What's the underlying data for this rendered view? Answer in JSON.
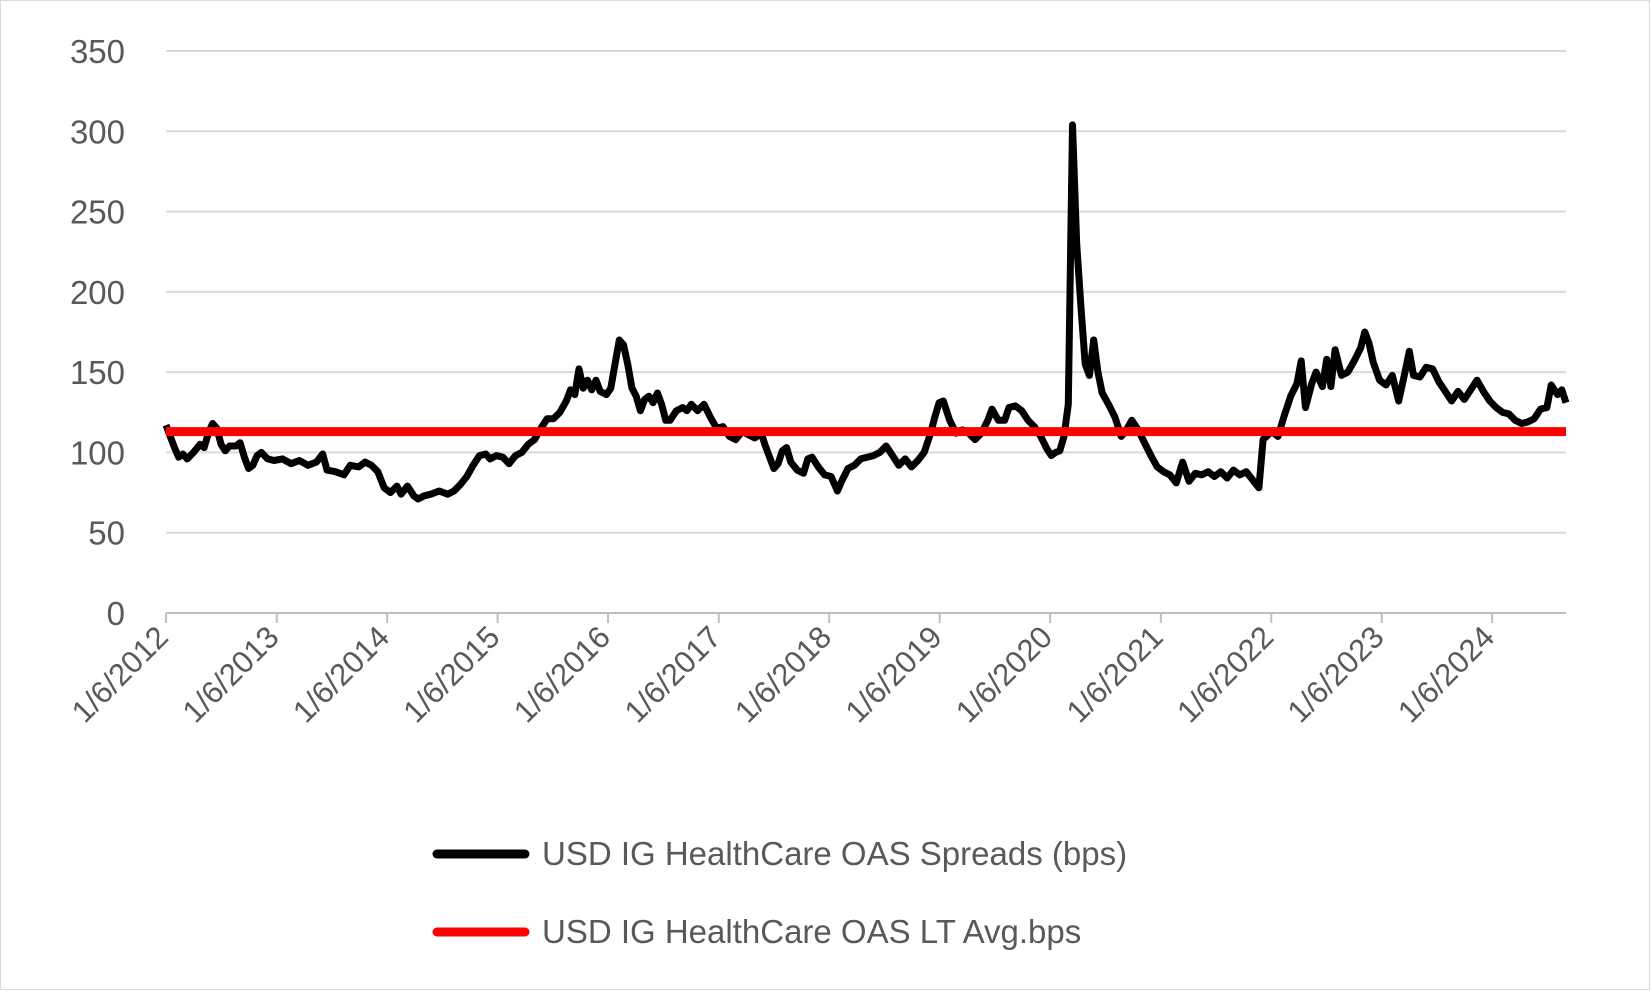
{
  "chart_data": {
    "type": "line",
    "title": "",
    "xlabel": "",
    "ylabel": "",
    "x_range": [
      "1/6/2012",
      "2024-09-06"
    ],
    "ylim": [
      0,
      350
    ],
    "y_ticks": [
      0,
      50,
      100,
      150,
      200,
      250,
      300,
      350
    ],
    "x_tick_labels": [
      "1/6/2012",
      "1/6/2013",
      "1/6/2014",
      "1/6/2015",
      "1/6/2016",
      "1/6/2017",
      "1/6/2018",
      "1/6/2019",
      "1/6/2020",
      "1/6/2021",
      "1/6/2022",
      "1/6/2023",
      "1/6/2024"
    ],
    "grid": "horizontal",
    "legend_position": "bottom",
    "colors": {
      "spread": "#000000",
      "average": "#ff0000",
      "grid": "#d9d9d9",
      "axis": "#bfbfbf",
      "text": "#595959"
    },
    "series": [
      {
        "name": "USD IG HealthCare OAS  Spreads (bps)",
        "color": "#000000",
        "points": [
          [
            "2012-01-06",
            117
          ],
          [
            "2012-01-20",
            110
          ],
          [
            "2012-02-03",
            103
          ],
          [
            "2012-02-17",
            97
          ],
          [
            "2012-03-02",
            99
          ],
          [
            "2012-03-16",
            96
          ],
          [
            "2012-04-06",
            100
          ],
          [
            "2012-04-27",
            105
          ],
          [
            "2012-05-11",
            103
          ],
          [
            "2012-05-25",
            112
          ],
          [
            "2012-06-08",
            118
          ],
          [
            "2012-06-22",
            115
          ],
          [
            "2012-07-06",
            105
          ],
          [
            "2012-07-20",
            101
          ],
          [
            "2012-08-03",
            104
          ],
          [
            "2012-08-24",
            104
          ],
          [
            "2012-09-07",
            106
          ],
          [
            "2012-09-21",
            97
          ],
          [
            "2012-10-05",
            90
          ],
          [
            "2012-10-19",
            92
          ],
          [
            "2012-11-02",
            98
          ],
          [
            "2012-11-16",
            100
          ],
          [
            "2012-12-07",
            96
          ],
          [
            "2012-12-28",
            95
          ],
          [
            "2013-01-25",
            96
          ],
          [
            "2013-02-22",
            93
          ],
          [
            "2013-03-22",
            95
          ],
          [
            "2013-04-19",
            92
          ],
          [
            "2013-05-17",
            94
          ],
          [
            "2013-06-07",
            99
          ],
          [
            "2013-06-21",
            89
          ],
          [
            "2013-07-19",
            88
          ],
          [
            "2013-08-16",
            86
          ],
          [
            "2013-09-06",
            92
          ],
          [
            "2013-10-04",
            91
          ],
          [
            "2013-10-25",
            94
          ],
          [
            "2013-11-15",
            92
          ],
          [
            "2013-12-06",
            88
          ],
          [
            "2013-12-27",
            78
          ],
          [
            "2014-01-17",
            75
          ],
          [
            "2014-02-07",
            79
          ],
          [
            "2014-02-21",
            74
          ],
          [
            "2014-03-14",
            79
          ],
          [
            "2014-04-04",
            73
          ],
          [
            "2014-04-18",
            71
          ],
          [
            "2014-05-09",
            73
          ],
          [
            "2014-05-30",
            74
          ],
          [
            "2014-06-27",
            76
          ],
          [
            "2014-07-25",
            74
          ],
          [
            "2014-08-15",
            76
          ],
          [
            "2014-09-05",
            80
          ],
          [
            "2014-09-26",
            85
          ],
          [
            "2014-10-17",
            92
          ],
          [
            "2014-11-07",
            98
          ],
          [
            "2014-11-28",
            99
          ],
          [
            "2014-12-12",
            96
          ],
          [
            "2015-01-02",
            98
          ],
          [
            "2015-01-23",
            97
          ],
          [
            "2015-02-13",
            93
          ],
          [
            "2015-03-06",
            98
          ],
          [
            "2015-03-27",
            100
          ],
          [
            "2015-04-17",
            105
          ],
          [
            "2015-05-08",
            108
          ],
          [
            "2015-05-29",
            115
          ],
          [
            "2015-06-19",
            121
          ],
          [
            "2015-07-10",
            121
          ],
          [
            "2015-07-31",
            125
          ],
          [
            "2015-08-21",
            132
          ],
          [
            "2015-09-04",
            139
          ],
          [
            "2015-09-18",
            136
          ],
          [
            "2015-10-02",
            152
          ],
          [
            "2015-10-16",
            140
          ],
          [
            "2015-10-30",
            145
          ],
          [
            "2015-11-13",
            139
          ],
          [
            "2015-11-27",
            145
          ],
          [
            "2015-12-11",
            138
          ],
          [
            "2016-01-01",
            136
          ],
          [
            "2016-01-15",
            140
          ],
          [
            "2016-01-29",
            155
          ],
          [
            "2016-02-12",
            170
          ],
          [
            "2016-02-26",
            167
          ],
          [
            "2016-03-11",
            155
          ],
          [
            "2016-03-25",
            140
          ],
          [
            "2016-04-08",
            135
          ],
          [
            "2016-04-22",
            126
          ],
          [
            "2016-05-06",
            133
          ],
          [
            "2016-05-20",
            135
          ],
          [
            "2016-06-03",
            131
          ],
          [
            "2016-06-17",
            137
          ],
          [
            "2016-07-01",
            130
          ],
          [
            "2016-07-15",
            120
          ],
          [
            "2016-07-29",
            120
          ],
          [
            "2016-08-19",
            126
          ],
          [
            "2016-09-09",
            128
          ],
          [
            "2016-09-23",
            126
          ],
          [
            "2016-10-07",
            130
          ],
          [
            "2016-10-28",
            126
          ],
          [
            "2016-11-18",
            130
          ],
          [
            "2016-12-09",
            122
          ],
          [
            "2016-12-30",
            115
          ],
          [
            "2017-01-20",
            116
          ],
          [
            "2017-02-10",
            110
          ],
          [
            "2017-03-03",
            108
          ],
          [
            "2017-03-24",
            113
          ],
          [
            "2017-04-14",
            111
          ],
          [
            "2017-05-05",
            109
          ],
          [
            "2017-05-26",
            112
          ],
          [
            "2017-06-09",
            104
          ],
          [
            "2017-06-23",
            97
          ],
          [
            "2017-07-07",
            90
          ],
          [
            "2017-07-21",
            93
          ],
          [
            "2017-08-04",
            101
          ],
          [
            "2017-08-18",
            103
          ],
          [
            "2017-09-01",
            94
          ],
          [
            "2017-09-22",
            89
          ],
          [
            "2017-10-13",
            87
          ],
          [
            "2017-10-27",
            96
          ],
          [
            "2017-11-10",
            97
          ],
          [
            "2017-12-01",
            91
          ],
          [
            "2017-12-22",
            86
          ],
          [
            "2018-01-12",
            85
          ],
          [
            "2018-02-02",
            76
          ],
          [
            "2018-02-16",
            82
          ],
          [
            "2018-03-09",
            90
          ],
          [
            "2018-03-30",
            92
          ],
          [
            "2018-04-20",
            96
          ],
          [
            "2018-05-11",
            97
          ],
          [
            "2018-06-01",
            98
          ],
          [
            "2018-06-22",
            100
          ],
          [
            "2018-07-13",
            104
          ],
          [
            "2018-08-03",
            98
          ],
          [
            "2018-08-24",
            92
          ],
          [
            "2018-09-14",
            96
          ],
          [
            "2018-10-05",
            91
          ],
          [
            "2018-10-26",
            95
          ],
          [
            "2018-11-16",
            100
          ],
          [
            "2018-12-07",
            112
          ],
          [
            "2018-12-21",
            122
          ],
          [
            "2019-01-04",
            131
          ],
          [
            "2019-01-18",
            132
          ],
          [
            "2019-02-08",
            120
          ],
          [
            "2019-03-01",
            112
          ],
          [
            "2019-03-22",
            114
          ],
          [
            "2019-04-12",
            112
          ],
          [
            "2019-05-03",
            108
          ],
          [
            "2019-05-24",
            112
          ],
          [
            "2019-06-14",
            120
          ],
          [
            "2019-06-28",
            127
          ],
          [
            "2019-07-19",
            120
          ],
          [
            "2019-08-09",
            120
          ],
          [
            "2019-08-23",
            128
          ],
          [
            "2019-09-13",
            129
          ],
          [
            "2019-10-04",
            126
          ],
          [
            "2019-10-25",
            120
          ],
          [
            "2019-11-15",
            116
          ],
          [
            "2019-12-06",
            110
          ],
          [
            "2019-12-27",
            102
          ],
          [
            "2020-01-10",
            98
          ],
          [
            "2020-01-24",
            100
          ],
          [
            "2020-02-07",
            101
          ],
          [
            "2020-02-21",
            110
          ],
          [
            "2020-03-06",
            130
          ],
          [
            "2020-03-20",
            304
          ],
          [
            "2020-04-03",
            230
          ],
          [
            "2020-04-17",
            190
          ],
          [
            "2020-05-01",
            155
          ],
          [
            "2020-05-15",
            148
          ],
          [
            "2020-05-29",
            170
          ],
          [
            "2020-06-12",
            150
          ],
          [
            "2020-06-26",
            137
          ],
          [
            "2020-07-17",
            130
          ],
          [
            "2020-08-07",
            122
          ],
          [
            "2020-08-28",
            110
          ],
          [
            "2020-09-11",
            113
          ],
          [
            "2020-10-02",
            120
          ],
          [
            "2020-10-23",
            114
          ],
          [
            "2020-11-13",
            106
          ],
          [
            "2020-12-04",
            98
          ],
          [
            "2020-12-25",
            91
          ],
          [
            "2021-01-15",
            88
          ],
          [
            "2021-02-05",
            86
          ],
          [
            "2021-02-26",
            81
          ],
          [
            "2021-03-19",
            94
          ],
          [
            "2021-04-09",
            82
          ],
          [
            "2021-04-30",
            87
          ],
          [
            "2021-05-21",
            86
          ],
          [
            "2021-06-11",
            88
          ],
          [
            "2021-07-02",
            85
          ],
          [
            "2021-07-23",
            88
          ],
          [
            "2021-08-13",
            84
          ],
          [
            "2021-09-03",
            89
          ],
          [
            "2021-09-24",
            86
          ],
          [
            "2021-10-15",
            88
          ],
          [
            "2021-11-05",
            83
          ],
          [
            "2021-11-26",
            78
          ],
          [
            "2021-12-10",
            108
          ],
          [
            "2022-01-07",
            113
          ],
          [
            "2022-01-28",
            110
          ],
          [
            "2022-02-18",
            123
          ],
          [
            "2022-03-11",
            135
          ],
          [
            "2022-04-01",
            143
          ],
          [
            "2022-04-15",
            157
          ],
          [
            "2022-04-29",
            128
          ],
          [
            "2022-05-20",
            143
          ],
          [
            "2022-06-03",
            150
          ],
          [
            "2022-06-24",
            141
          ],
          [
            "2022-07-08",
            158
          ],
          [
            "2022-07-22",
            141
          ],
          [
            "2022-08-05",
            164
          ],
          [
            "2022-08-26",
            148
          ],
          [
            "2022-09-16",
            150
          ],
          [
            "2022-10-07",
            157
          ],
          [
            "2022-10-28",
            165
          ],
          [
            "2022-11-11",
            175
          ],
          [
            "2022-11-25",
            168
          ],
          [
            "2022-12-09",
            156
          ],
          [
            "2022-12-30",
            145
          ],
          [
            "2023-01-20",
            142
          ],
          [
            "2023-02-10",
            148
          ],
          [
            "2023-03-03",
            132
          ],
          [
            "2023-03-24",
            150
          ],
          [
            "2023-04-07",
            163
          ],
          [
            "2023-04-21",
            148
          ],
          [
            "2023-05-12",
            147
          ],
          [
            "2023-06-02",
            153
          ],
          [
            "2023-06-23",
            152
          ],
          [
            "2023-07-14",
            144
          ],
          [
            "2023-08-04",
            138
          ],
          [
            "2023-08-25",
            132
          ],
          [
            "2023-09-15",
            138
          ],
          [
            "2023-10-06",
            133
          ],
          [
            "2023-10-27",
            139
          ],
          [
            "2023-11-17",
            145
          ],
          [
            "2023-12-08",
            138
          ],
          [
            "2023-12-29",
            132
          ],
          [
            "2024-01-19",
            128
          ],
          [
            "2024-02-09",
            125
          ],
          [
            "2024-03-01",
            124
          ],
          [
            "2024-03-22",
            120
          ],
          [
            "2024-04-12",
            118
          ],
          [
            "2024-05-03",
            119
          ],
          [
            "2024-05-24",
            121
          ],
          [
            "2024-06-14",
            127
          ],
          [
            "2024-07-05",
            128
          ],
          [
            "2024-07-19",
            142
          ],
          [
            "2024-08-09",
            136
          ],
          [
            "2024-08-23",
            139
          ],
          [
            "2024-09-06",
            131
          ]
        ]
      },
      {
        "name": "USD IG HealthCare OAS  LT Avg.bps",
        "color": "#ff0000",
        "points": [
          [
            "2012-01-06",
            113
          ],
          [
            "2024-09-06",
            113
          ]
        ]
      }
    ]
  }
}
